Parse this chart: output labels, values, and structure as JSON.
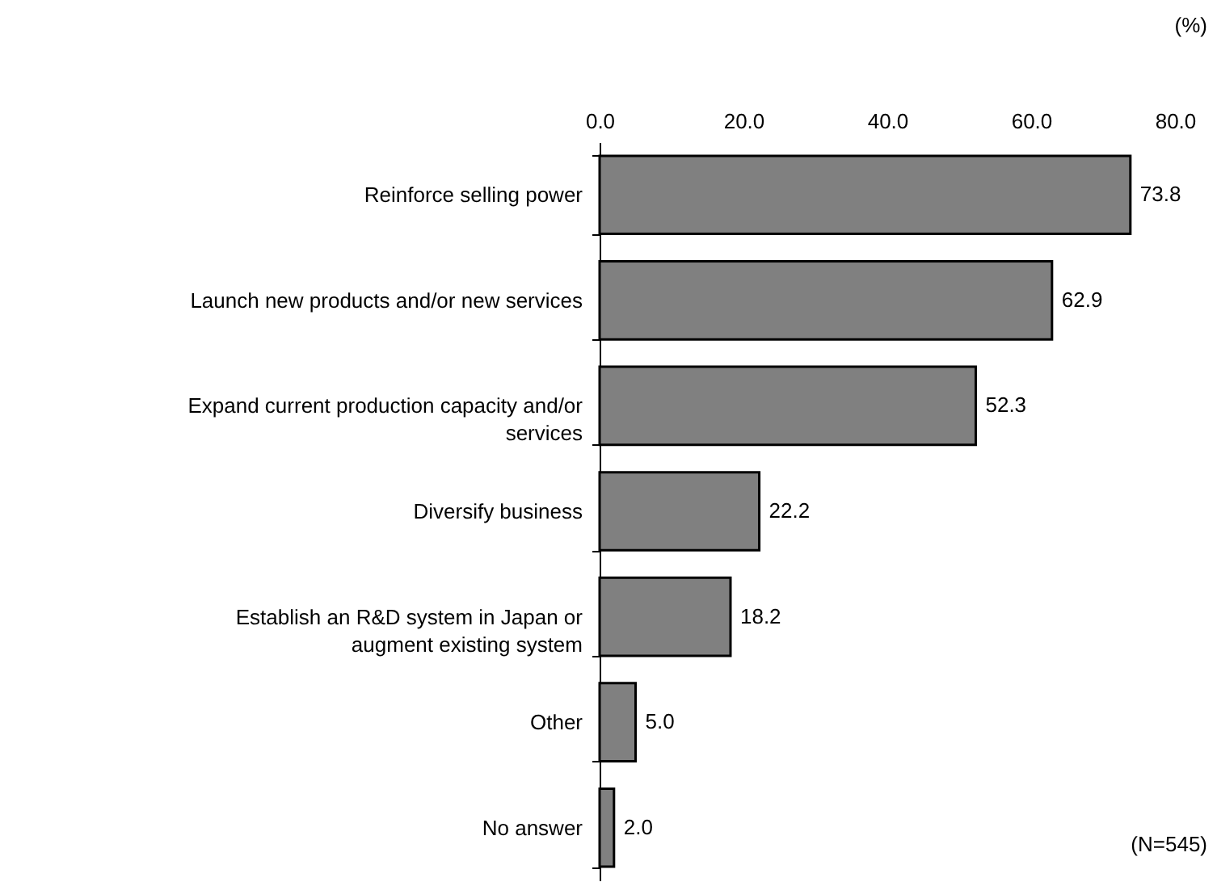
{
  "chart_data": {
    "type": "bar",
    "orientation": "horizontal",
    "categories": [
      "Reinforce selling power",
      "Launch new products and/or new services",
      "Expand current production capacity and/or services",
      "Diversify business",
      "Establish an R&D system in Japan or augment existing system",
      "Other",
      "No answer"
    ],
    "values": [
      73.8,
      62.9,
      52.3,
      22.2,
      18.2,
      5.0,
      2.0
    ],
    "value_labels": [
      "73.8",
      "62.9",
      "52.3",
      "22.2",
      "18.2",
      "5.0",
      "2.0"
    ],
    "color": "#808080",
    "xlim": [
      0,
      80
    ],
    "xticks": [
      {
        "value": 0,
        "label": "0.0"
      },
      {
        "value": 20,
        "label": "20.0"
      },
      {
        "value": 40,
        "label": "40.0"
      },
      {
        "value": 60,
        "label": "60.0"
      },
      {
        "value": 80,
        "label": "80.0"
      }
    ],
    "annotations": [
      "(%)",
      "(N=545)"
    ],
    "grid": false
  }
}
